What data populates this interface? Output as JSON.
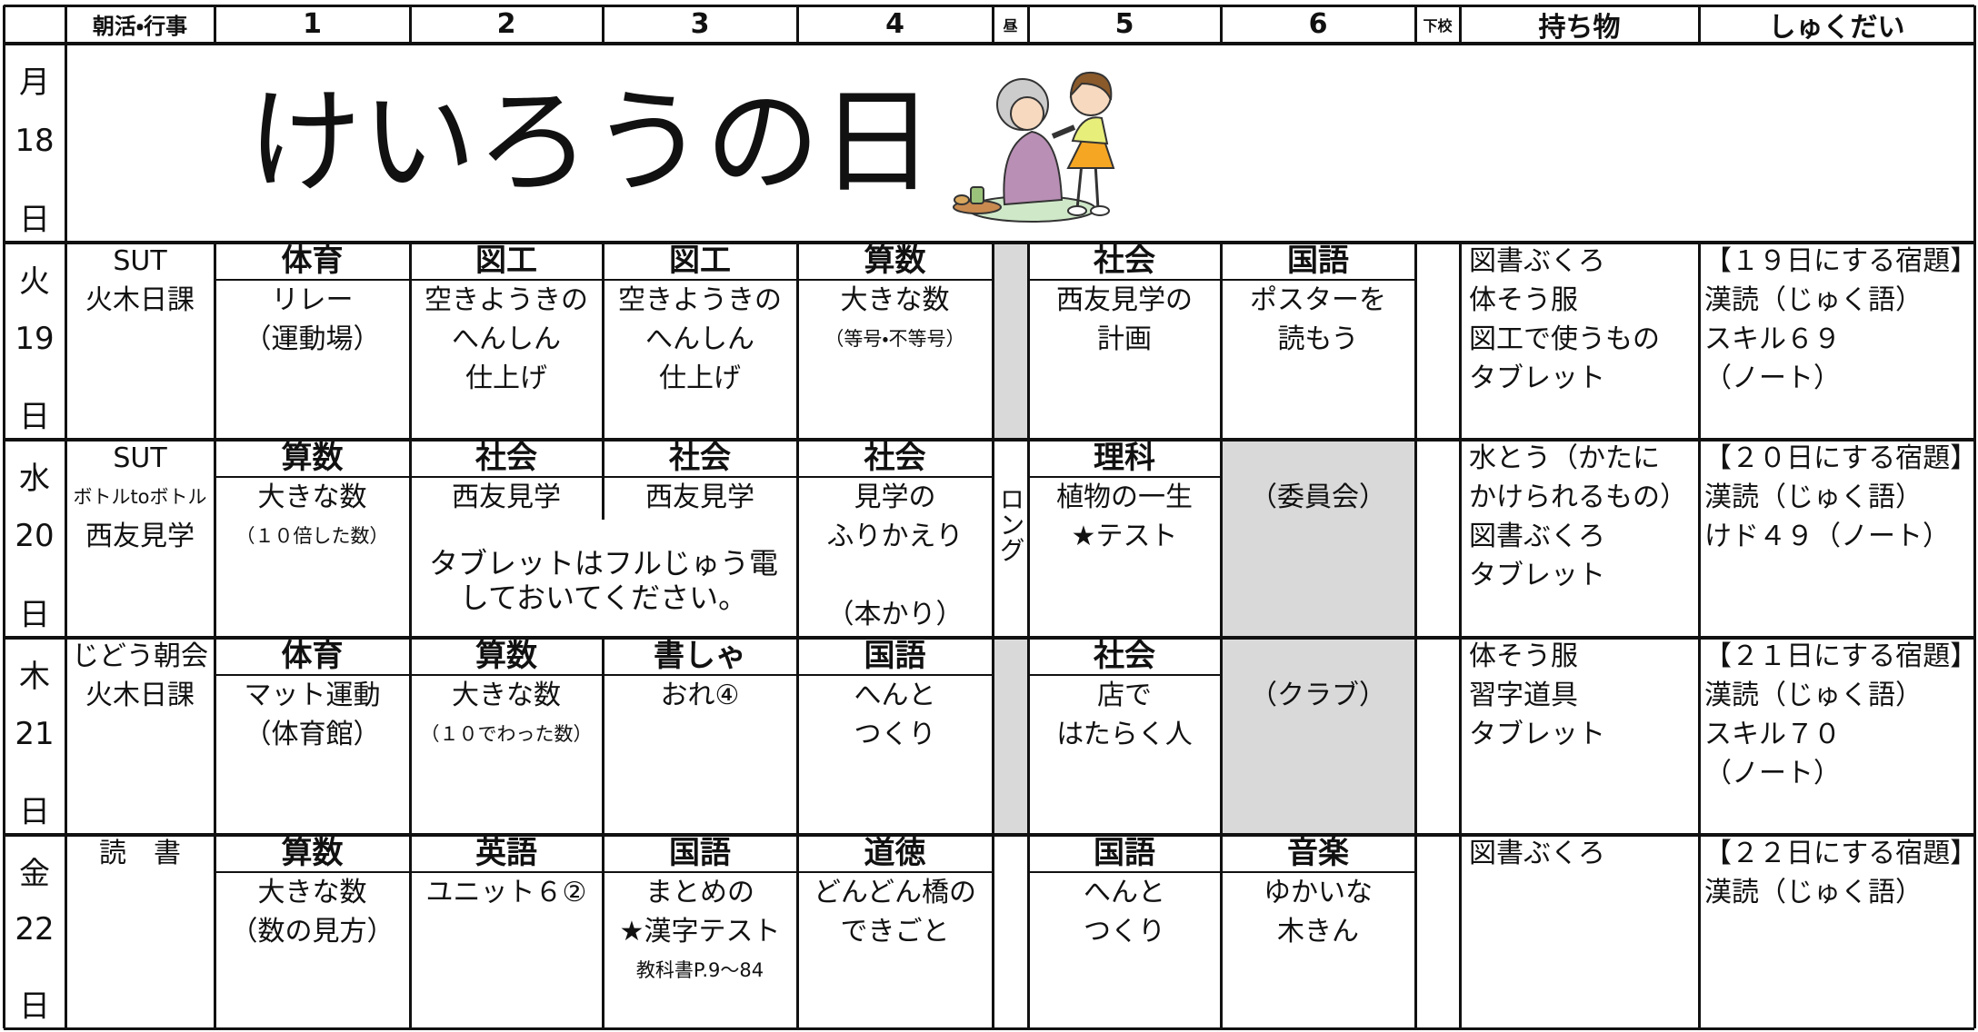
{
  "header": [
    "朝活・行事",
    "1",
    "2",
    "3",
    "4",
    "昼",
    "5",
    "6",
    "下校",
    "持ち物",
    "しゅくだい"
  ],
  "days": [
    {
      "day": "月",
      "date": "18",
      "unit": "日",
      "banner": "けいろうの日"
    },
    {
      "day": "火",
      "date": "19",
      "unit": "日",
      "morning": [
        "SUT",
        "火木日課"
      ],
      "periods": [
        {
          "subject": "体育",
          "notes": [
            "リレー",
            "（運動場）"
          ]
        },
        {
          "subject": "図工",
          "notes": [
            "空きようきの",
            "へんしん",
            "仕上げ"
          ]
        },
        {
          "subject": "図工",
          "notes": [
            "空きようきの",
            "へんしん",
            "仕上げ"
          ]
        },
        {
          "subject": "算数",
          "notes": [
            "大きな数",
            "（等号・不等号）"
          ]
        },
        {
          "subject": "社会",
          "notes": [
            "西友見学の",
            "計画"
          ]
        },
        {
          "subject": "国語",
          "notes": [
            "ポスターを",
            "読もう"
          ]
        }
      ],
      "items": [
        "図書ぶくろ",
        "体そう服",
        "図工で使うもの",
        "タブレット"
      ],
      "homework": [
        "【１９日にする宿題】",
        "漢読（じゅく語）",
        "スキル６９",
        "（ノート）"
      ]
    },
    {
      "day": "水",
      "date": "20",
      "unit": "日",
      "morning": [
        "SUT",
        "ボトルtoボトル",
        "西友見学"
      ],
      "periods": [
        {
          "subject": "算数",
          "notes": [
            "大きな数",
            "（１０倍した数）"
          ]
        },
        {
          "subject": "社会",
          "notes": [
            "西友見学"
          ]
        },
        {
          "subject": "社会",
          "notes": [
            "西友見学"
          ]
        },
        {
          "subject": "社会",
          "notes": [
            "見学の",
            "ふりかえり",
            "（本かり）"
          ]
        },
        {
          "subject": "理科",
          "notes": [
            "植物の一生",
            "★テスト"
          ]
        },
        {
          "notes": [
            "（委員会）"
          ]
        }
      ],
      "notice": [
        "タブレットはフルじゅう電",
        "しておいてください。"
      ],
      "lunch": "ロング",
      "items": [
        "水とう（かたに",
        "かけられるもの）",
        "図書ぶくろ",
        "タブレット"
      ],
      "homework": [
        "【２０日にする宿題】",
        "漢読（じゅく語）",
        "けド４９（ノート）"
      ]
    },
    {
      "day": "木",
      "date": "21",
      "unit": "日",
      "morning": [
        "じどう朝会",
        "火木日課"
      ],
      "periods": [
        {
          "subject": "体育",
          "notes": [
            "マット運動",
            "（体育館）"
          ]
        },
        {
          "subject": "算数",
          "notes": [
            "大きな数",
            "（１０でわった数）"
          ]
        },
        {
          "subject": "書しゃ",
          "notes": [
            "おれ④"
          ]
        },
        {
          "subject": "国語",
          "notes": [
            "へんと",
            "つくり"
          ]
        },
        {
          "subject": "社会",
          "notes": [
            "店で",
            "はたらく人"
          ]
        },
        {
          "notes": [
            "（クラブ）"
          ]
        }
      ],
      "items": [
        "体そう服",
        "習字道具",
        "タブレット"
      ],
      "homework": [
        "【２１日にする宿題】",
        "漢読（じゅく語）",
        "スキル７０",
        "（ノート）"
      ]
    },
    {
      "day": "金",
      "date": "22",
      "unit": "日",
      "morning": [
        "読　書"
      ],
      "periods": [
        {
          "subject": "算数",
          "notes": [
            "大きな数",
            "（数の見方）"
          ]
        },
        {
          "subject": "英語",
          "notes": [
            "ユニット６②"
          ]
        },
        {
          "subject": "国語",
          "notes": [
            "まとめの",
            "★漢字テスト",
            "教科書P.9～84"
          ]
        },
        {
          "subject": "道徳",
          "notes": [
            "どんどん橋の",
            "できごと"
          ]
        },
        {
          "subject": "国語",
          "notes": [
            "へんと",
            "つくり"
          ]
        },
        {
          "subject": "音楽",
          "notes": [
            "ゆかいな",
            "木きん"
          ]
        }
      ],
      "items": [
        "図書ぶくろ"
      ],
      "homework": [
        "【２２日にする宿題】",
        "漢読（じゅく語）"
      ]
    }
  ]
}
